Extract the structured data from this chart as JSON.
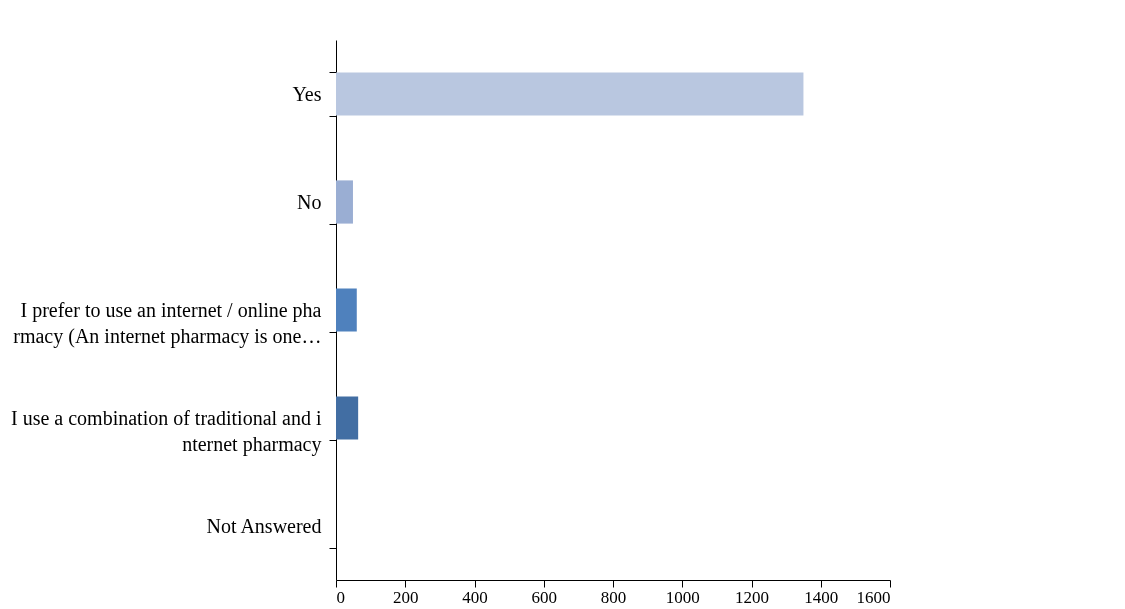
{
  "chart_data": {
    "type": "bar",
    "orientation": "horizontal",
    "categories": [
      "Yes",
      "No",
      "I prefer to use an internet / online pharmacy (An internet pharmacy is one…",
      "I use a combination of traditional and internet pharmacy",
      "Not Answered"
    ],
    "values": [
      1350,
      49,
      60,
      64,
      0
    ],
    "colors": [
      "#b9c7e0",
      "#9aaed3",
      "#4f81bd",
      "#426ea3",
      "#2c4d75"
    ],
    "xlim": [
      0,
      1600
    ],
    "xticks": [
      0,
      200,
      400,
      600,
      800,
      1000,
      1200,
      1400,
      1600
    ],
    "grid": false
  }
}
